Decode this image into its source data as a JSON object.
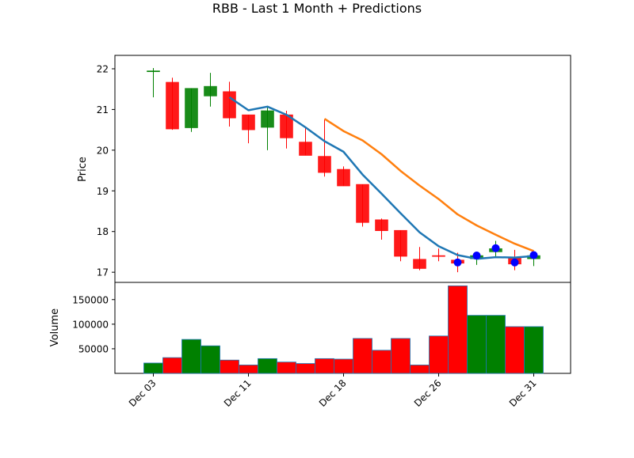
{
  "chart_data": {
    "title": "RBB - Last 1 Month + Predictions",
    "colors": {
      "up": "#008000",
      "down": "#ff0000",
      "sma": "#1f77b4",
      "prediction": "#ff7f0e",
      "marker": "#0000ff",
      "volume_edge": "#1f77b4"
    },
    "x_ticks": [
      "Dec 03",
      "Dec 11",
      "Dec 18",
      "Dec 26",
      "Dec 31"
    ],
    "candles": [
      {
        "o": 21.95,
        "h": 22.02,
        "l": 21.3,
        "c": 21.95
      },
      {
        "o": 21.67,
        "h": 21.78,
        "l": 20.5,
        "c": 20.52
      },
      {
        "o": 20.55,
        "h": 21.52,
        "l": 20.45,
        "c": 21.52
      },
      {
        "o": 21.33,
        "h": 21.9,
        "l": 21.07,
        "c": 21.57
      },
      {
        "o": 21.44,
        "h": 21.68,
        "l": 20.58,
        "c": 20.79
      },
      {
        "o": 20.87,
        "h": 20.87,
        "l": 20.17,
        "c": 20.5
      },
      {
        "o": 20.56,
        "h": 21.07,
        "l": 20.0,
        "c": 20.97
      },
      {
        "o": 20.87,
        "h": 20.97,
        "l": 20.04,
        "c": 20.3
      },
      {
        "o": 20.2,
        "h": 20.57,
        "l": 19.87,
        "c": 19.87
      },
      {
        "o": 19.85,
        "h": 20.76,
        "l": 19.35,
        "c": 19.45
      },
      {
        "o": 19.53,
        "h": 19.6,
        "l": 19.12,
        "c": 19.12
      },
      {
        "o": 19.16,
        "h": 19.16,
        "l": 18.12,
        "c": 18.22
      },
      {
        "o": 18.29,
        "h": 18.32,
        "l": 17.8,
        "c": 18.02
      },
      {
        "o": 18.03,
        "h": 18.03,
        "l": 17.27,
        "c": 17.39
      },
      {
        "o": 17.32,
        "h": 17.62,
        "l": 17.05,
        "c": 17.09
      },
      {
        "o": 17.41,
        "h": 17.58,
        "l": 17.27,
        "c": 17.4
      },
      {
        "o": 17.3,
        "h": 17.48,
        "l": 17.0,
        "c": 17.22
      },
      {
        "o": 17.33,
        "h": 17.49,
        "l": 17.18,
        "c": 17.41
      },
      {
        "o": 17.5,
        "h": 17.77,
        "l": 17.35,
        "c": 17.58
      },
      {
        "o": 17.37,
        "h": 17.55,
        "l": 17.05,
        "c": 17.2
      },
      {
        "o": 17.33,
        "h": 17.43,
        "l": 17.15,
        "c": 17.41
      }
    ],
    "sma": [
      null,
      null,
      null,
      null,
      21.3,
      20.98,
      21.07,
      20.87,
      20.56,
      20.22,
      19.96,
      19.4,
      18.93,
      18.45,
      17.98,
      17.64,
      17.42,
      17.33,
      17.37,
      17.36,
      17.4
    ],
    "prediction": [
      null,
      null,
      null,
      null,
      null,
      null,
      null,
      null,
      null,
      20.77,
      20.47,
      20.24,
      19.9,
      19.49,
      19.13,
      18.8,
      18.42,
      18.15,
      17.92,
      17.7,
      17.52
    ],
    "prediction_markers": [
      null,
      null,
      null,
      null,
      null,
      null,
      null,
      null,
      null,
      null,
      null,
      null,
      null,
      null,
      null,
      null,
      17.24,
      17.41,
      17.59,
      17.24,
      17.42
    ],
    "volume": [
      21000,
      32000,
      69000,
      56000,
      27000,
      17000,
      30000,
      23000,
      20000,
      30000,
      29000,
      71000,
      47000,
      71000,
      17000,
      76000,
      178000,
      118000,
      118000,
      95000,
      95000
    ],
    "price_axis": {
      "label": "Price",
      "ticks": [
        17,
        18,
        19,
        20,
        21,
        22
      ],
      "ylim": [
        16.75,
        22.33
      ]
    },
    "volume_axis": {
      "label": "Volume",
      "ticks": [
        50000,
        100000,
        150000
      ],
      "tick_labels": [
        "50000",
        "100000",
        "150000"
      ],
      "ylim": [
        0,
        185000
      ]
    }
  }
}
